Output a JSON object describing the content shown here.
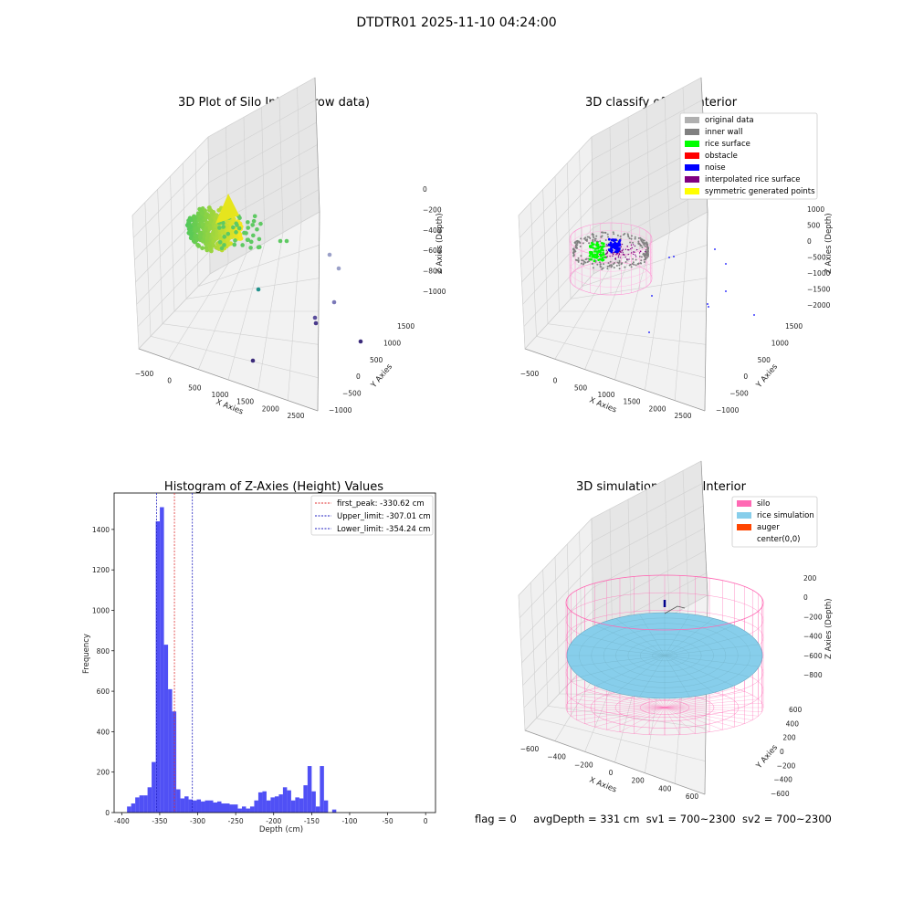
{
  "figure_title": "DTDTR01 2025-11-10 04:24:00",
  "status_line": {
    "flag": "flag = 0",
    "avg_depth": "avgDepth = 331 cm",
    "sv1": "sv1 = 700~2300",
    "sv2": "sv2 = 700~2300"
  },
  "colors": {
    "hist_bar": "#5050f5",
    "first_peak": "#e03030",
    "limits": "#2020c0",
    "silo": "#ff69b4",
    "rice_sim": "#87ceeb",
    "auger": "#ff4500",
    "original": "#b0b0b0",
    "inner_wall": "#808080",
    "rice_surface": "#00ff00",
    "obstacle": "#ff0000",
    "noise": "#0000ff",
    "interpolated": "#800080",
    "symmetric": "#ffff00"
  },
  "chart_data": [
    {
      "type": "scatter",
      "title": "3D Plot of Silo Interior(row data)",
      "xlabel": "X Axies",
      "ylabel": "Y Axies",
      "zlabel": "Z Axies (Depth)",
      "x_ticks": [
        "−500",
        "0",
        "500",
        "1000",
        "1500",
        "2000",
        "2500"
      ],
      "y_ticks": [
        "−1000",
        "−500",
        "0",
        "500",
        "1000",
        "1500"
      ],
      "z_ticks": [
        "0",
        "−200",
        "−400",
        "−600",
        "−800",
        "−1000"
      ],
      "xlim": [
        -600,
        2600
      ],
      "ylim": [
        -1100,
        1600
      ],
      "zlim": [
        -1150,
        50
      ],
      "scattered_points": [
        {
          "x": 600,
          "y": 900,
          "z": -550
        },
        {
          "x": 700,
          "y": 950,
          "z": -560
        },
        {
          "x": 1600,
          "y": 600,
          "z": -720
        },
        {
          "x": 1800,
          "y": 700,
          "z": -850
        },
        {
          "x": 400,
          "y": 0,
          "z": -950
        },
        {
          "x": 1500,
          "y": 300,
          "z": -1050
        },
        {
          "x": 1400,
          "y": 100,
          "z": -1100
        },
        {
          "x": 1300,
          "y": 0,
          "z": -1130
        },
        {
          "x": 2200,
          "y": 400,
          "z": -1100
        },
        {
          "x": 900,
          "y": -600,
          "z": -1150
        }
      ]
    },
    {
      "type": "scatter",
      "title": "3D classify of Silo Interior",
      "xlabel": "X Axies",
      "ylabel": "Y Axies",
      "zlabel": "Z Axies (Depth)",
      "x_ticks": [
        "−500",
        "0",
        "500",
        "1000",
        "1500",
        "2000",
        "2500"
      ],
      "y_ticks": [
        "−1000",
        "−500",
        "0",
        "500",
        "1000",
        "1500"
      ],
      "z_ticks": [
        "1000",
        "500",
        "0",
        "−500",
        "−1000",
        "−1500",
        "−2000"
      ],
      "xlim": [
        -600,
        2600
      ],
      "ylim": [
        -1100,
        1600
      ],
      "zlim": [
        -2000,
        1000
      ],
      "legend": [
        "original data",
        "inner wall",
        "rice surface",
        "obstacle",
        "noise",
        "interpolated rice surface",
        "symmetric generated points"
      ]
    },
    {
      "type": "bar",
      "title": "Histogram of Z-Axies (Height) Values",
      "xlabel": "Depth (cm)",
      "ylabel": "Frequency",
      "xlim": [
        -410,
        13
      ],
      "ylim": [
        0,
        1580
      ],
      "x_ticks": [
        -400,
        -350,
        -300,
        -250,
        -200,
        -150,
        -100,
        -50,
        0
      ],
      "y_ticks": [
        0,
        200,
        400,
        600,
        800,
        1000,
        1200,
        1400
      ],
      "bin_start": -393,
      "bin_width": 5.4,
      "values": [
        30,
        45,
        75,
        85,
        85,
        125,
        250,
        1440,
        1510,
        830,
        610,
        500,
        115,
        70,
        80,
        65,
        60,
        65,
        55,
        60,
        60,
        50,
        55,
        45,
        45,
        40,
        40,
        20,
        30,
        20,
        30,
        60,
        100,
        105,
        60,
        75,
        80,
        90,
        125,
        110,
        60,
        75,
        70,
        135,
        230,
        105,
        30,
        230,
        60,
        0,
        15
      ],
      "lines": [
        {
          "label": "first_peak: -330.62 cm",
          "x": -330.62,
          "color": "#e03030"
        },
        {
          "label": "Upper_limit: -307.01 cm",
          "x": -307.01,
          "color": "#2020c0"
        },
        {
          "label": "Lower_limit: -354.24 cm",
          "x": -354.24,
          "color": "#2020c0"
        }
      ]
    },
    {
      "type": "scatter",
      "title": "3D simulation of Silo Interior",
      "xlabel": "X Axies",
      "ylabel": "Y Axies",
      "zlabel": "Z Axies (Depth)",
      "x_ticks": [
        "−600",
        "−400",
        "−200",
        "0",
        "200",
        "400",
        "600"
      ],
      "y_ticks": [
        "−600",
        "−400",
        "−200",
        "0",
        "200",
        "400",
        "600"
      ],
      "z_ticks": [
        "200",
        "0",
        "−200",
        "−400",
        "−600",
        "−800"
      ],
      "xlim": [
        -650,
        650
      ],
      "ylim": [
        -650,
        650
      ],
      "zlim": [
        -1100,
        300
      ],
      "legend": [
        "silo",
        "rice simulation",
        "auger",
        "center(0,0)"
      ]
    }
  ]
}
